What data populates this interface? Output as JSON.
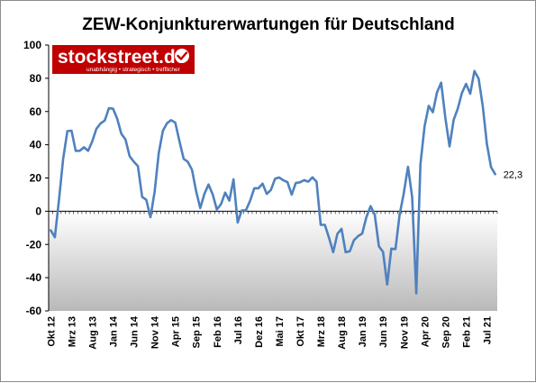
{
  "chart_data": {
    "type": "line",
    "title": "ZEW-Konjunkturerwartungen für Deutschland",
    "xlabel": "",
    "ylabel": "",
    "ylim": [
      -60,
      100
    ],
    "yticks": [
      "100",
      "80",
      "60",
      "40",
      "20",
      "0",
      "-20",
      "-40",
      "-60"
    ],
    "xtick_labels": [
      "Okt 12",
      "Mrz 13",
      "Aug 13",
      "Jan 14",
      "Jun 14",
      "Nov 14",
      "Apr 15",
      "Sep 15",
      "Feb 16",
      "Jul 16",
      "Dez 16",
      "Mai 17",
      "Okt 17",
      "Mrz 18",
      "Aug 18",
      "Jan 19",
      "Jun 19",
      "Nov 19",
      "Apr 20",
      "Sep 20",
      "Feb 21",
      "Jul 21"
    ],
    "grid": false,
    "line_color": "#4f81bd",
    "end_label": "22,3",
    "series": [
      {
        "name": "",
        "values": [
          -11.5,
          -15.7,
          6.9,
          31.5,
          48.2,
          48.5,
          36.3,
          36.4,
          38.5,
          36.3,
          42.0,
          49.6,
          52.8,
          54.6,
          62.0,
          61.7,
          55.7,
          46.6,
          43.2,
          33.1,
          29.8,
          27.1,
          8.6,
          6.9,
          -3.6,
          11.5,
          34.9,
          48.4,
          53.0,
          54.8,
          53.3,
          41.9,
          31.5,
          29.7,
          25.0,
          12.1,
          1.9,
          10.4,
          16.1,
          10.2,
          1.0,
          4.3,
          11.2,
          6.4,
          19.2,
          -6.8,
          0.5,
          0.6,
          6.2,
          13.8,
          13.8,
          16.6,
          10.4,
          12.8,
          19.5,
          20.3,
          18.6,
          17.5,
          10.0,
          17.0,
          17.4,
          18.7,
          17.8,
          20.4,
          17.8,
          -8.2,
          -8.2,
          -16.1,
          -24.7,
          -13.7,
          -10.6,
          -24.7,
          -24.1,
          -17.5,
          -15.0,
          -13.4,
          -3.6,
          3.1,
          -2.1,
          -21.1,
          -24.5,
          -44.1,
          -22.5,
          -22.8,
          -2.1,
          10.7,
          26.7,
          8.7,
          -49.5,
          28.2,
          51.0,
          63.4,
          59.6,
          71.5,
          77.4,
          56.1,
          39.0,
          55.0,
          61.8,
          71.2,
          76.6,
          70.7,
          84.4,
          79.8,
          63.3,
          40.4,
          26.5,
          22.3
        ]
      }
    ]
  },
  "logo": {
    "text": "stockstreet.de",
    "tagline": "unabhängig • strategisch • trefflicher",
    "bg_color": "#c00000",
    "icon": "checkmark-icon"
  },
  "colors": {
    "frame_border": "#8c8c8c",
    "negative_fill_top": "#ffffff",
    "negative_fill_bottom": "#b9b9b9",
    "axis": "#000000"
  }
}
